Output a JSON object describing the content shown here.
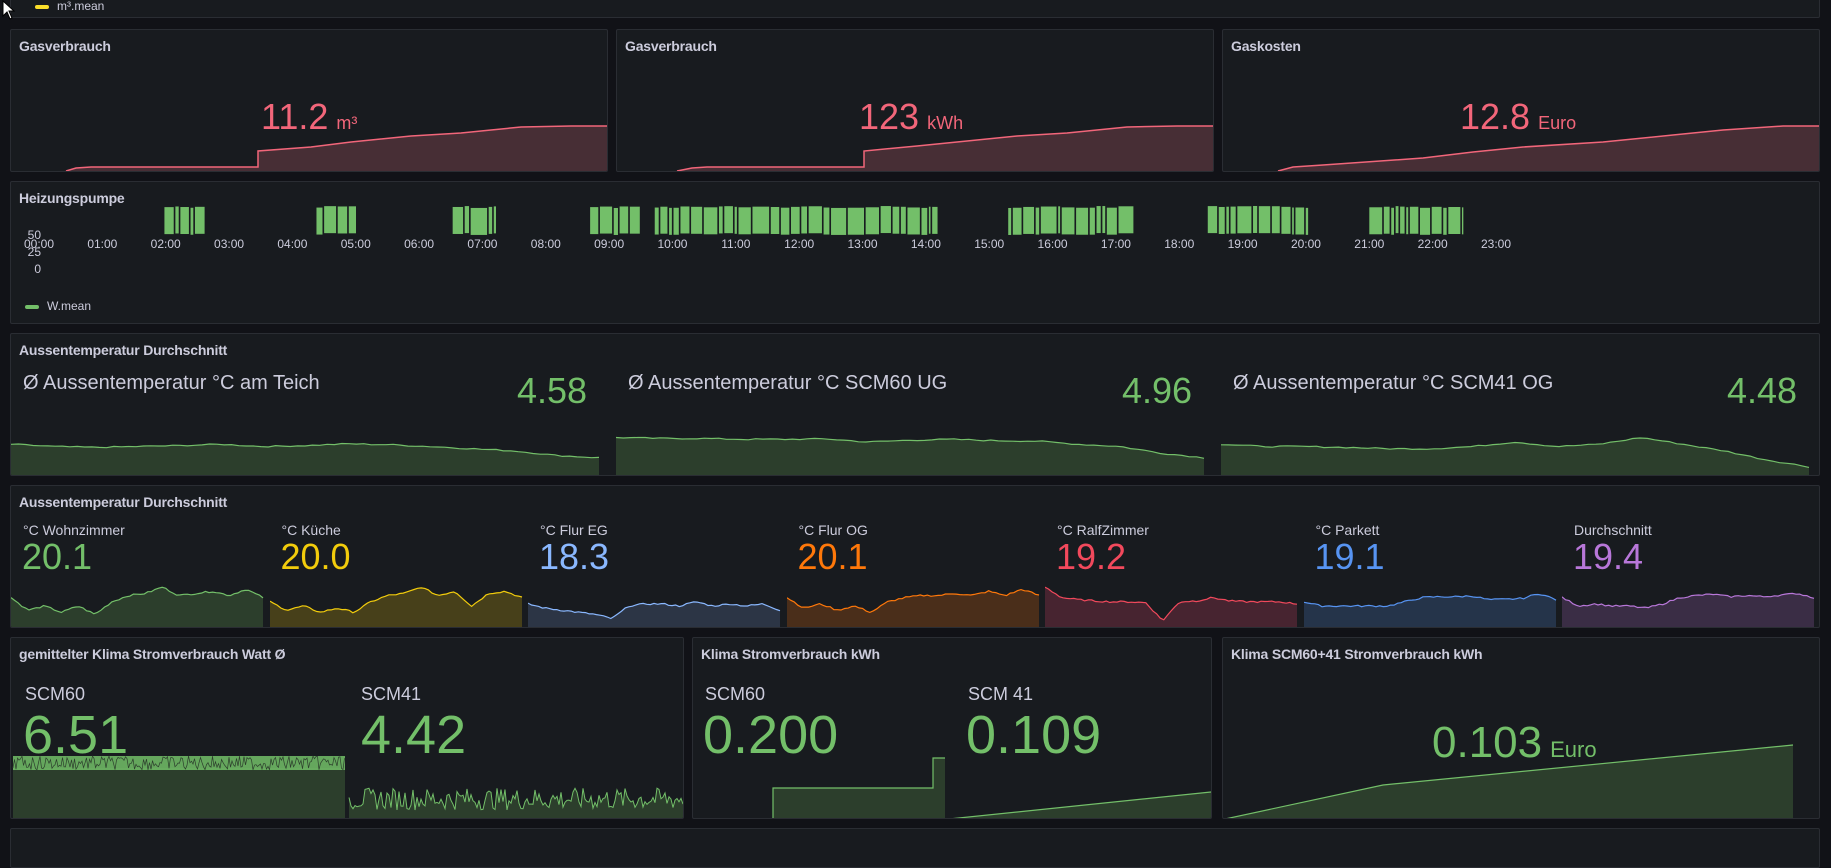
{
  "top_legend": {
    "label": "m³.mean",
    "color": "#fade2a"
  },
  "gas_panels": [
    {
      "title": "Gasverbrauch",
      "value": "11.2",
      "unit": "m³",
      "color": "#f2667a"
    },
    {
      "title": "Gasverbrauch",
      "value": "123",
      "unit": "kWh",
      "color": "#f2667a"
    },
    {
      "title": "Gaskosten",
      "value": "12.8",
      "unit": "Euro",
      "color": "#f2667a"
    }
  ],
  "pump": {
    "title": "Heizungspumpe",
    "legend": "W.mean",
    "color": "#73bf69",
    "y_ticks": [
      "50",
      "25",
      "0"
    ],
    "x_ticks": [
      "00:00",
      "01:00",
      "02:00",
      "03:00",
      "04:00",
      "05:00",
      "06:00",
      "07:00",
      "08:00",
      "09:00",
      "10:00",
      "11:00",
      "12:00",
      "13:00",
      "14:00",
      "15:00",
      "16:00",
      "17:00",
      "18:00",
      "19:00",
      "20:00",
      "21:00",
      "22:00",
      "23:00"
    ]
  },
  "outdoor": {
    "title": "Aussentemperatur Durchschnitt",
    "items": [
      {
        "label": "Ø Aussentemperatur °C am Teich",
        "value": "4.58",
        "color": "#73bf69"
      },
      {
        "label": "Ø Aussentemperatur °C SCM60 UG",
        "value": "4.96",
        "color": "#73bf69"
      },
      {
        "label": "Ø Aussentemperatur °C SCM41 OG",
        "value": "4.48",
        "color": "#73bf69"
      }
    ]
  },
  "indoor": {
    "title": "Aussentemperatur Durchschnitt",
    "items": [
      {
        "label": "°C Wohnzimmer",
        "value": "20.1",
        "color": "#73bf69",
        "fill": "#2c3e2c"
      },
      {
        "label": "°C Küche",
        "value": "20.0",
        "color": "#f2cc0c",
        "fill": "#47401a"
      },
      {
        "label": "°C Flur EG",
        "value": "18.3",
        "color": "#8ab8ff",
        "fill": "#2c3545"
      },
      {
        "label": "°C Flur OG",
        "value": "20.1",
        "color": "#ff780a",
        "fill": "#4a2e1a"
      },
      {
        "label": "°C RalfZimmer",
        "value": "19.2",
        "color": "#f2495c",
        "fill": "#472430"
      },
      {
        "label": "°C Parkett",
        "value": "19.1",
        "color": "#5794f2",
        "fill": "#25344a"
      },
      {
        "label": "Durchschnitt",
        "value": "19.4",
        "color": "#b877d9",
        "fill": "#3a2d45"
      }
    ]
  },
  "klima_watt": {
    "title": "gemittelter Klima Stromverbrauch Watt Ø",
    "items": [
      {
        "label": "SCM60",
        "value": "6.51",
        "color": "#73bf69"
      },
      {
        "label": "SCM41",
        "value": "4.42",
        "color": "#73bf69"
      }
    ]
  },
  "klima_kwh": {
    "title": "Klima Stromverbrauch kWh",
    "items": [
      {
        "label": "SCM60",
        "value": "0.200",
        "color": "#73bf69"
      },
      {
        "label": "SCM 41",
        "value": "0.109",
        "color": "#73bf69"
      }
    ]
  },
  "klima_total": {
    "title": "Klima SCM60+41 Stromverbrauch kWh",
    "value": "0.103",
    "unit": "Euro",
    "color": "#73bf69"
  }
}
